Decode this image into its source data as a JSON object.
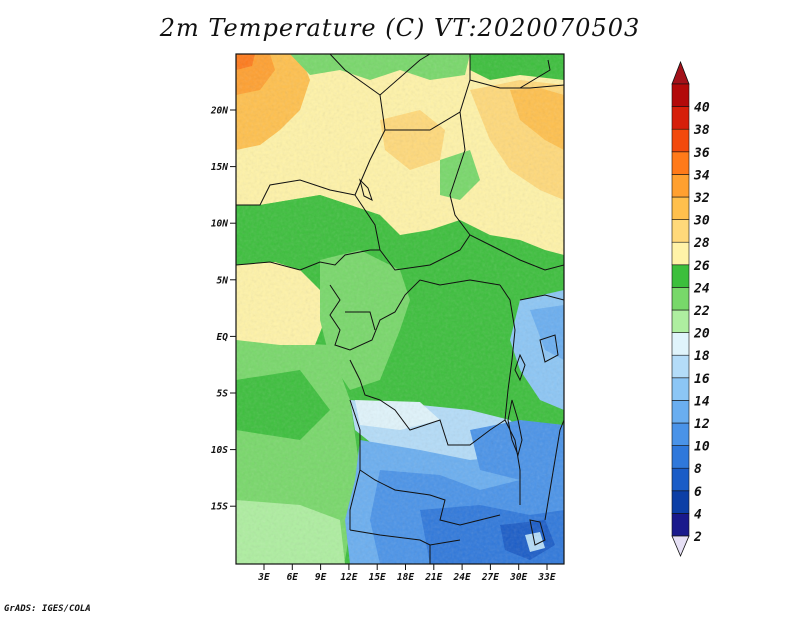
{
  "title": "2m Temperature (C) VT:2020070503",
  "footer": "GrADS: IGES/COLA",
  "map": {
    "lat_ticks": [
      "20N",
      "15N",
      "10N",
      "5N",
      "EQ",
      "5S",
      "10S",
      "15S"
    ],
    "lon_ticks": [
      "3E",
      "6E",
      "9E",
      "12E",
      "15E",
      "18E",
      "21E",
      "24E",
      "27E",
      "30E",
      "33E"
    ]
  },
  "colorbar": {
    "levels": [
      "2",
      "4",
      "6",
      "8",
      "10",
      "12",
      "14",
      "16",
      "18",
      "20",
      "22",
      "24",
      "26",
      "28",
      "30",
      "32",
      "34",
      "36",
      "38",
      "40"
    ],
    "colors": [
      "#1a1a8c",
      "#0c3fa6",
      "#1a5cc7",
      "#2f78db",
      "#4a93e8",
      "#6aaef0",
      "#8cc6f5",
      "#b4dcf8",
      "#e0f4fb",
      "#aeeea0",
      "#78d86a",
      "#3cbf3c",
      "#fff3a8",
      "#ffd97a",
      "#ffc04d",
      "#ffa030",
      "#ff7a1a",
      "#f24a0d",
      "#d61f0a",
      "#b30a0a"
    ],
    "low_color": "#e6e0f5",
    "high_color": "#a3121a"
  }
}
